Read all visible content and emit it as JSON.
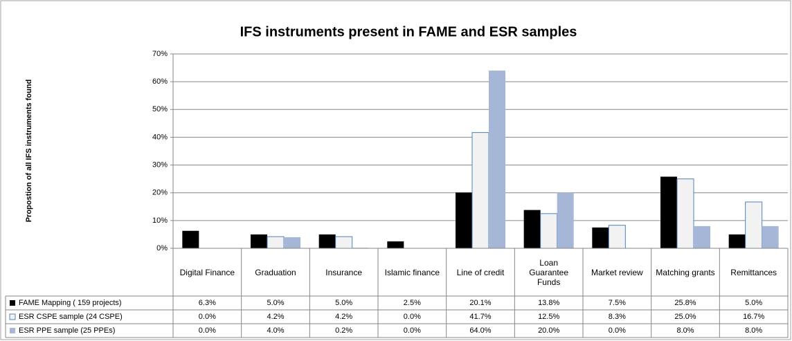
{
  "chart_data": {
    "type": "bar",
    "title": "IFS instruments present in FAME and ESR samples",
    "y_label": "Propostion of all IFS instruments found",
    "categories": [
      "Digital Finance",
      "Graduation",
      "Insurance",
      "Islamic finance",
      "Line of credit",
      "Loan Guarantee Funds",
      "Market review",
      "Matching grants",
      "Remittances"
    ],
    "series": [
      {
        "name": "FAME Mapping ( 159 projects)",
        "color": "#000000",
        "values": [
          6.3,
          5.0,
          5.0,
          2.5,
          20.1,
          13.8,
          7.5,
          25.8,
          5.0
        ],
        "value_labels": [
          "6.3%",
          "5.0%",
          "5.0%",
          "2.5%",
          "20.1%",
          "13.8%",
          "7.5%",
          "25.8%",
          "5.0%"
        ]
      },
      {
        "name": "ESR CSPE sample (24 CSPE)",
        "color": "#f2f2f2",
        "values": [
          0.0,
          4.2,
          4.2,
          0.0,
          41.7,
          12.5,
          8.3,
          25.0,
          16.7
        ],
        "value_labels": [
          "0.0%",
          "4.2%",
          "4.2%",
          "0.0%",
          "41.7%",
          "12.5%",
          "8.3%",
          "25.0%",
          "16.7%"
        ]
      },
      {
        "name": "ESR PPE sample (25 PPEs)",
        "color": "#a6b6d6",
        "values": [
          0.0,
          4.0,
          0.2,
          0.0,
          64.0,
          20.0,
          0.0,
          8.0,
          8.0
        ],
        "value_labels": [
          "0.0%",
          "4.0%",
          "0.2%",
          "0.0%",
          "64.0%",
          "20.0%",
          "0.0%",
          "8.0%",
          "8.0%"
        ]
      }
    ],
    "ylim": [
      0,
      70
    ],
    "yticks": [
      {
        "value": 0,
        "label": "0%"
      },
      {
        "value": 10,
        "label": "10%"
      },
      {
        "value": 20,
        "label": "20%"
      },
      {
        "value": 30,
        "label": "30%"
      },
      {
        "value": 40,
        "label": "40%"
      },
      {
        "value": 50,
        "label": "50%"
      },
      {
        "value": 60,
        "label": "60%"
      },
      {
        "value": 70,
        "label": "70%"
      }
    ],
    "grid": true
  }
}
